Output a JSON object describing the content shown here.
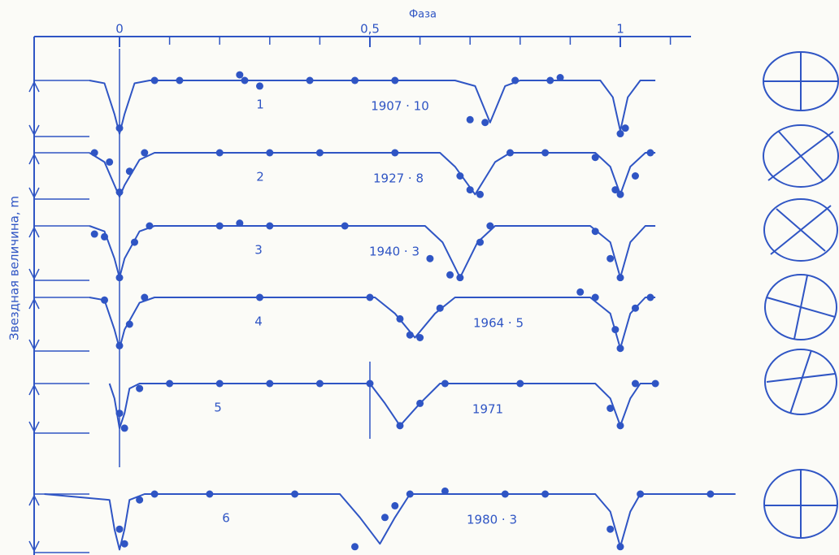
{
  "chart_data": {
    "type": "line",
    "title": "Фаза",
    "y_label": "Звездная величина, m",
    "color": "#2f55c4",
    "xlim": [
      -0.17,
      1.14
    ],
    "xticks": [
      0,
      {
        "value": 0.5,
        "label": "0,5"
      },
      1
    ],
    "xminor": [
      0.1,
      0.2,
      0.3,
      0.4,
      0.6,
      0.7,
      0.8,
      0.9,
      1.1
    ],
    "panels": [
      {
        "label": "1",
        "epoch": "1907 · 10",
        "ylim": [
          0,
          1
        ],
        "curve": {
          "x": [
            -0.06,
            -0.03,
            -0.01,
            0,
            0.01,
            0.03,
            0.06,
            0.67,
            0.71,
            0.74,
            0.77,
            0.8,
            0.96,
            0.985,
            1,
            1.015,
            1.04,
            1.07
          ],
          "values": [
            0,
            0.05,
            0.6,
            0.95,
            0.6,
            0.05,
            0,
            0,
            0.1,
            0.75,
            0.1,
            0,
            0,
            0.3,
            0.9,
            0.3,
            0,
            0
          ]
        },
        "points": {
          "x": [
            0,
            0.07,
            0.12,
            0.24,
            0.25,
            0.28,
            0.38,
            0.47,
            0.55,
            0.7,
            0.73,
            0.79,
            0.86,
            0.88,
            1,
            1.01
          ],
          "values": [
            0.85,
            0,
            0,
            -0.1,
            0,
            0.1,
            0,
            0,
            0,
            0.7,
            0.75,
            0,
            0,
            -0.05,
            0.95,
            0.85
          ]
        }
      },
      {
        "label": "2",
        "epoch": "1927 · 8",
        "ylim": [
          0,
          1
        ],
        "curve": {
          "x": [
            -0.06,
            -0.03,
            -0.01,
            0,
            0.01,
            0.04,
            0.07,
            0.64,
            0.67,
            0.71,
            0.75,
            0.78,
            0.95,
            0.98,
            1,
            1.02,
            1.05,
            1.07
          ],
          "values": [
            0,
            0.2,
            0.7,
            0.95,
            0.7,
            0.15,
            0,
            0,
            0.3,
            0.9,
            0.2,
            0,
            0,
            0.3,
            0.9,
            0.3,
            0,
            0
          ]
        },
        "points": {
          "x": [
            -0.05,
            -0.02,
            0,
            0.02,
            0.05,
            0.2,
            0.3,
            0.4,
            0.55,
            0.68,
            0.7,
            0.72,
            0.78,
            0.85,
            0.95,
            0.99,
            1,
            1.03,
            1.06
          ],
          "values": [
            0,
            0.2,
            0.85,
            0.4,
            0,
            0,
            0,
            0,
            0,
            0.5,
            0.8,
            0.9,
            0,
            0,
            0.1,
            0.8,
            0.9,
            0.5,
            0
          ]
        }
      },
      {
        "label": "3",
        "epoch": "1940 · 3",
        "ylim": [
          0,
          1
        ],
        "curve": {
          "x": [
            -0.06,
            -0.03,
            -0.01,
            0,
            0.01,
            0.04,
            0.07,
            0.61,
            0.645,
            0.68,
            0.715,
            0.75,
            0.94,
            0.98,
            1,
            1.02,
            1.05,
            1.07
          ],
          "values": [
            0,
            0.1,
            0.6,
            0.95,
            0.6,
            0.1,
            0,
            0,
            0.3,
            0.95,
            0.3,
            0,
            0,
            0.3,
            0.95,
            0.3,
            0,
            0
          ]
        },
        "points": {
          "x": [
            -0.05,
            -0.03,
            0,
            0.03,
            0.06,
            0.2,
            0.24,
            0.3,
            0.45,
            0.62,
            0.66,
            0.68,
            0.72,
            0.74,
            0.95,
            0.98,
            1
          ],
          "values": [
            0.15,
            0.2,
            0.95,
            0.3,
            0,
            0,
            -0.05,
            0,
            0,
            0.6,
            0.9,
            0.95,
            0.3,
            0,
            0.1,
            0.6,
            0.95
          ]
        }
      },
      {
        "label": "4",
        "epoch": "1964 · 5",
        "ylim": [
          0,
          1
        ],
        "curve": {
          "x": [
            -0.06,
            -0.03,
            -0.01,
            0,
            0.01,
            0.04,
            0.07,
            0.51,
            0.55,
            0.59,
            0.63,
            0.67,
            0.94,
            0.98,
            1,
            1.02,
            1.05,
            1.07
          ],
          "values": [
            0,
            0.05,
            0.6,
            0.95,
            0.6,
            0.1,
            0,
            0,
            0.3,
            0.75,
            0.3,
            0,
            0,
            0.3,
            0.95,
            0.3,
            0,
            0
          ]
        },
        "points": {
          "x": [
            -0.03,
            0,
            0.02,
            0.05,
            0.28,
            0.5,
            0.56,
            0.58,
            0.6,
            0.64,
            0.92,
            0.95,
            0.99,
            1,
            1.03,
            1.06
          ],
          "values": [
            0.05,
            0.9,
            0.5,
            0,
            0,
            0,
            0.4,
            0.7,
            0.75,
            0.2,
            -0.1,
            0,
            0.6,
            0.95,
            0.2,
            0
          ]
        }
      },
      {
        "label": "5",
        "epoch": "1971",
        "ylim": [
          0,
          1
        ],
        "curve": {
          "x": [
            -0.02,
            -0.01,
            0,
            0.01,
            0.02,
            0.04,
            0.07,
            0.5,
            0.53,
            0.56,
            0.6,
            0.64,
            0.95,
            0.98,
            1,
            1.02,
            1.04,
            1.07
          ],
          "values": [
            0,
            0.3,
            0.9,
            0.6,
            0.1,
            0,
            0,
            0,
            0.4,
            0.85,
            0.4,
            0,
            0,
            0.3,
            0.85,
            0.3,
            0,
            0
          ]
        },
        "points": {
          "x": [
            0,
            0.01,
            0.04,
            0.1,
            0.2,
            0.3,
            0.4,
            0.5,
            0.56,
            0.6,
            0.65,
            0.8,
            0.98,
            1,
            1.03,
            1.07
          ],
          "values": [
            0.6,
            0.9,
            0.1,
            0,
            0,
            0,
            0,
            0,
            0.85,
            0.4,
            0,
            0,
            0.5,
            0.85,
            0,
            0
          ]
        }
      },
      {
        "label": "6",
        "epoch": "1980 · 3",
        "ylim": [
          0,
          1
        ],
        "curve": {
          "x": [
            -0.15,
            -0.02,
            -0.01,
            0,
            0.01,
            0.02,
            0.05,
            0.44,
            0.48,
            0.52,
            0.55,
            0.58,
            0.95,
            0.98,
            1,
            1.02,
            1.04,
            1.23
          ],
          "values": [
            0,
            0.1,
            0.6,
            0.95,
            0.6,
            0.1,
            0,
            0,
            0.4,
            0.85,
            0.4,
            0,
            0,
            0.3,
            0.9,
            0.3,
            0,
            0
          ]
        },
        "points": {
          "x": [
            0,
            0.01,
            0.04,
            0.07,
            0.18,
            0.35,
            0.47,
            0.53,
            0.55,
            0.58,
            0.65,
            0.77,
            0.85,
            0.98,
            1,
            1.04,
            1.18
          ],
          "values": [
            0.6,
            0.85,
            0.1,
            0,
            0,
            0,
            0.9,
            0.4,
            0.2,
            0,
            -0.05,
            0,
            0,
            0.6,
            0.9,
            0,
            0
          ]
        }
      }
    ]
  }
}
